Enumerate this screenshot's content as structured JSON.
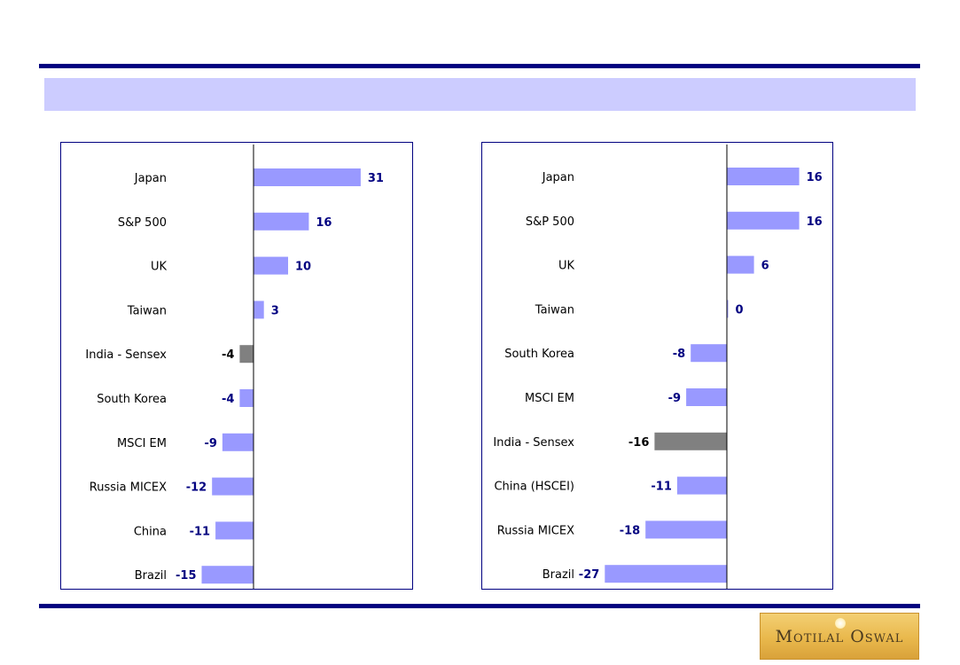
{
  "colors": {
    "bar": "#9999ff",
    "highlight_bar": "#808080",
    "value_text": "#000080",
    "highlight_text": "#000000",
    "rule": "#000080",
    "banner": "#ccccff"
  },
  "logo": {
    "text": "Motilal Oswal"
  },
  "chart_data": [
    {
      "type": "bar",
      "orientation": "horizontal",
      "title": "",
      "xlabel": "",
      "ylabel": "",
      "xlim": [
        -15,
        31
      ],
      "highlight": "India - Sensex",
      "categories": [
        "Japan",
        "S&P 500",
        "UK",
        "Taiwan",
        "India - Sensex",
        "South Korea",
        "MSCI EM",
        "Russia MICEX",
        "China",
        "Brazil"
      ],
      "values": [
        31,
        16,
        10,
        3,
        -4,
        -4,
        -9,
        -12,
        -11,
        -15
      ]
    },
    {
      "type": "bar",
      "orientation": "horizontal",
      "title": "",
      "xlabel": "",
      "ylabel": "",
      "xlim": [
        -27,
        16
      ],
      "highlight": "India - Sensex",
      "categories": [
        "Japan",
        "S&P 500",
        "UK",
        "Taiwan",
        "South Korea",
        "MSCI EM",
        "India - Sensex",
        "China (HSCEI)",
        "Russia MICEX",
        "Brazil"
      ],
      "values": [
        16,
        16,
        6,
        0,
        -8,
        -9,
        -16,
        -11,
        -18,
        -27
      ]
    }
  ]
}
